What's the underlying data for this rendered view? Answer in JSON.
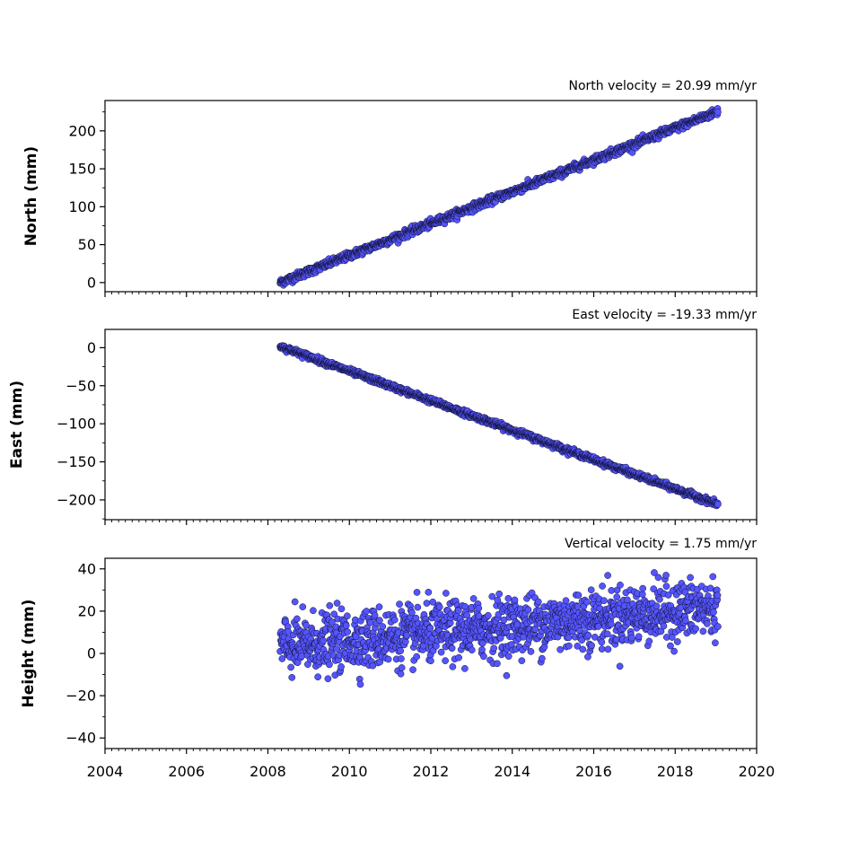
{
  "chart_data": [
    {
      "type": "scatter",
      "title": "North velocity = 20.99 mm/yr",
      "ylabel": "North (mm)",
      "xlim": [
        2004,
        2020
      ],
      "ylim": [
        -12,
        240
      ],
      "yticks": [
        0,
        50,
        100,
        150,
        200
      ],
      "ytick_labels": [
        "0",
        "50",
        "100",
        "150",
        "200"
      ],
      "start": 2008.3,
      "end": 2019.05,
      "trend": {
        "intercept": 0,
        "slope_mm_per_yr": 20.99
      },
      "scatter_sd": 2.5,
      "marker_color": "#5555ff"
    },
    {
      "type": "scatter",
      "title": "East velocity = -19.33 mm/yr",
      "ylabel": "East (mm)",
      "xlim": [
        2004,
        2020
      ],
      "ylim": [
        -226,
        24
      ],
      "yticks": [
        0,
        -50,
        -100,
        -150,
        -200
      ],
      "ytick_labels": [
        "0",
        "−50",
        "−100",
        "−150",
        "−200"
      ],
      "start": 2008.3,
      "end": 2019.05,
      "trend": {
        "intercept": 2,
        "slope_mm_per_yr": -19.33
      },
      "scatter_sd": 1.8,
      "marker_color": "#5555ff"
    },
    {
      "type": "scatter",
      "title": "Vertical velocity = 1.75 mm/yr",
      "ylabel": "Height (mm)",
      "xlim": [
        2004,
        2020
      ],
      "ylim": [
        -45,
        45
      ],
      "yticks": [
        40,
        20,
        0,
        -20,
        -40
      ],
      "ytick_labels": [
        "40",
        "20",
        "0",
        "−20",
        "−40"
      ],
      "start": 2008.3,
      "end": 2019.05,
      "trend": {
        "intercept": 3,
        "slope_mm_per_yr": 1.75
      },
      "scatter_sd": 7,
      "marker_color": "#5555ff",
      "xticks": [
        2004,
        2006,
        2008,
        2010,
        2012,
        2014,
        2016,
        2018,
        2020
      ],
      "xtick_labels": [
        "2004",
        "2006",
        "2008",
        "2010",
        "2012",
        "2014",
        "2016",
        "2018",
        "2020"
      ]
    }
  ]
}
